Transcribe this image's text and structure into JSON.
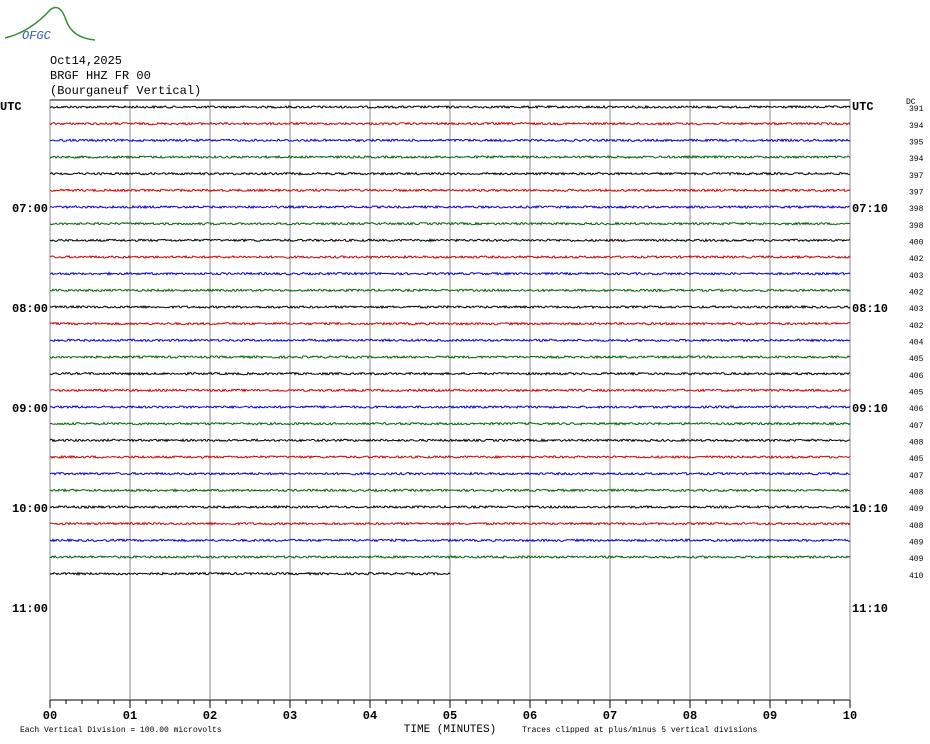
{
  "chart_data": {
    "type": "helicorder",
    "logo": "OFGC",
    "date": "Oct14,2025",
    "station": "BRGF HHZ FR 00",
    "location": "(Bourganeuf Vertical)",
    "left_labels": [
      "UTC",
      "07:00",
      "08:00",
      "09:00",
      "10:00",
      "11:00"
    ],
    "right_labels": [
      "UTC",
      "07:10",
      "08:10",
      "09:10",
      "10:10",
      "11:10"
    ],
    "dc_header": "DC",
    "dc_values": [
      391,
      394,
      395,
      394,
      397,
      397,
      398,
      398,
      400,
      402,
      403,
      402,
      403,
      402,
      404,
      405,
      406,
      405,
      406,
      407,
      408,
      405,
      407,
      408,
      409,
      408,
      409,
      409,
      410
    ],
    "trace_colors": [
      "#000000",
      "#d00000",
      "#0000d0",
      "#006400"
    ],
    "xlim": [
      0,
      10
    ],
    "xticks": [
      {
        "value": 0,
        "label": "00"
      },
      {
        "value": 1,
        "label": "01"
      },
      {
        "value": 2,
        "label": "02"
      },
      {
        "value": 3,
        "label": "03"
      },
      {
        "value": 4,
        "label": "04"
      },
      {
        "value": 5,
        "label": "05"
      },
      {
        "value": 6,
        "label": "06"
      },
      {
        "value": 7,
        "label": "07"
      },
      {
        "value": 8,
        "label": "08"
      },
      {
        "value": 9,
        "label": "09"
      },
      {
        "value": 10,
        "label": "10"
      }
    ],
    "x_label": "TIME (MINUTES)",
    "scale_note": "Each Vertical Division =  100.00 microvolts",
    "clip_note": "Traces clipped at plus/minus 5 vertical divisions"
  }
}
